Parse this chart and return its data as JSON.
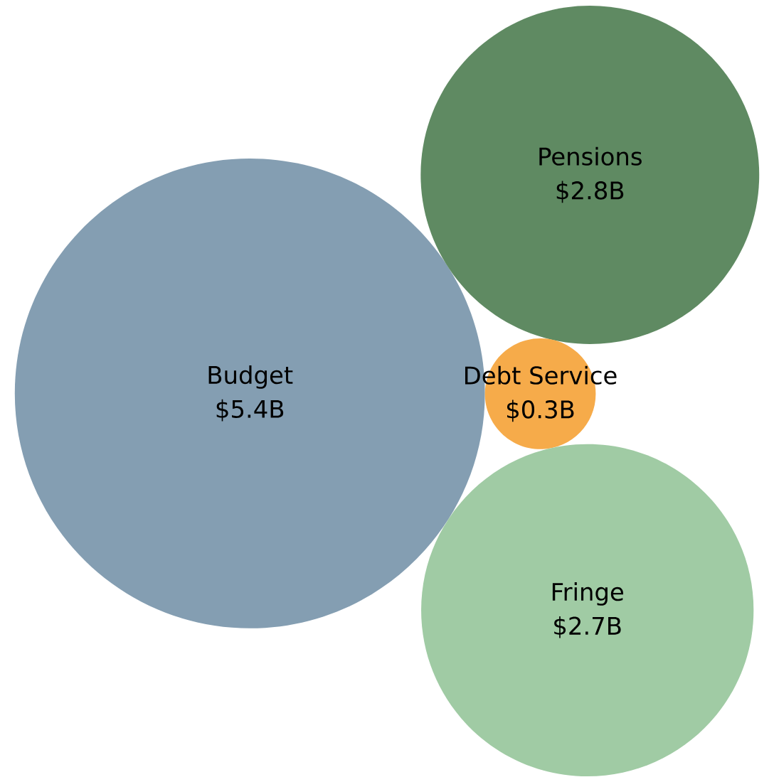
{
  "chart_data": {
    "type": "other",
    "categories": [
      "Budget",
      "Pensions",
      "Debt Service",
      "Fringe"
    ],
    "values": [
      5.4,
      2.8,
      0.3,
      2.7
    ],
    "value_labels": [
      "$5.4B",
      "$2.8B",
      "$0.3B",
      "$2.7B"
    ],
    "colors": [
      "#849eb2",
      "#5f8a62",
      "#f6ab4a",
      "#a0cba4"
    ]
  }
}
